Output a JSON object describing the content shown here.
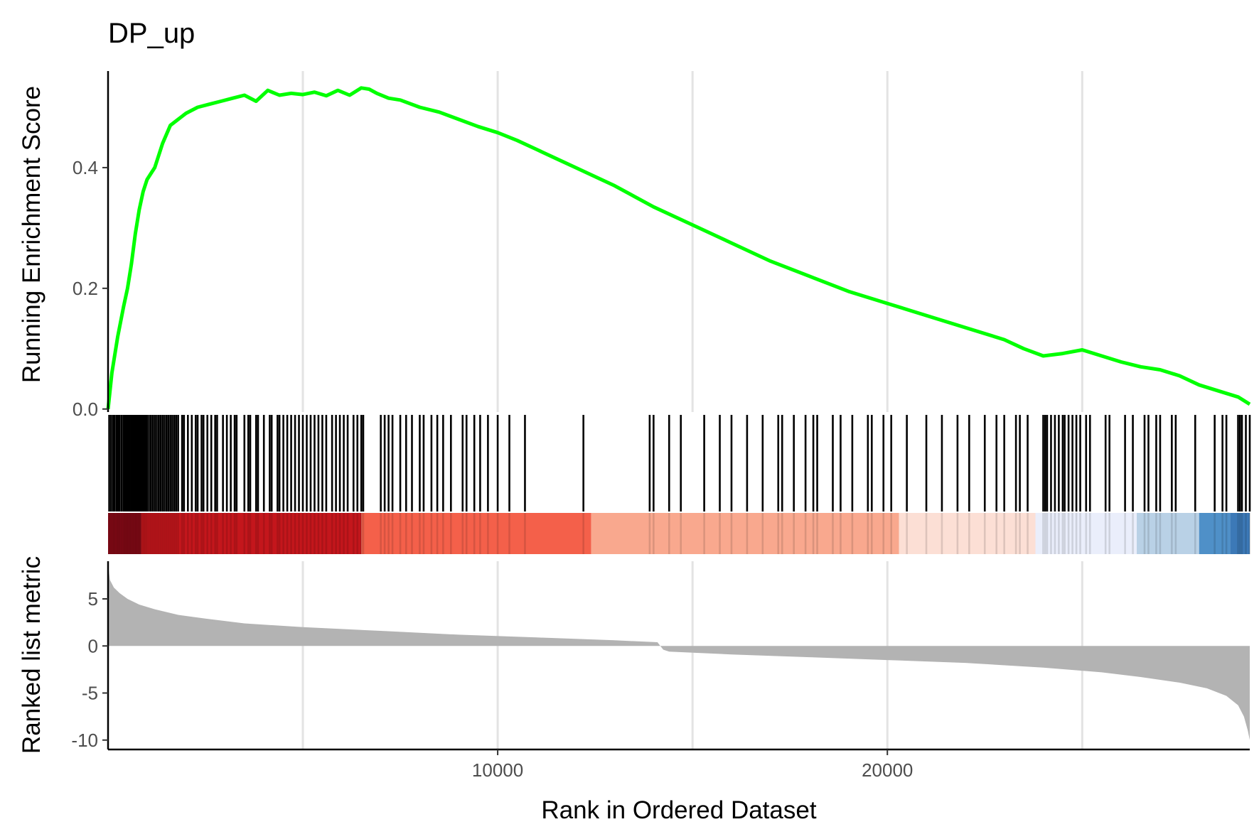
{
  "chart_data": {
    "type": "line",
    "title": "DP_up",
    "xlabel": "Rank in Ordered Dataset",
    "xlim": [
      1,
      29300
    ],
    "x_ticks": [
      10000,
      20000
    ],
    "x_tick_labels": [
      "10000",
      "20000"
    ],
    "x_gridlines": [
      5000,
      10000,
      15000,
      20000,
      25000
    ],
    "grid": "vertical major and minor x gridlines",
    "legend": "none",
    "panels": {
      "running_score": {
        "ylabel": "Running Enrichment Score",
        "ylim": [
          -0.005,
          0.56
        ],
        "y_ticks": [
          0.0,
          0.2,
          0.4
        ],
        "y_tick_labels": [
          "0.0",
          "0.2",
          "0.4"
        ],
        "line_color": "#00ff00",
        "series": [
          {
            "x": [
              1,
              100,
              250,
              400,
              500,
              600,
              700,
              800,
              900,
              1000,
              1100,
              1200,
              1400,
              1600,
              1800,
              2000,
              2300,
              2600,
              2900,
              3200,
              3500,
              3800,
              4100,
              4400,
              4700,
              5000,
              5300,
              5600,
              5900,
              6200,
              6500,
              6700,
              6900,
              7200,
              7500,
              8000,
              8500,
              9000,
              9500,
              10000,
              10500,
              11000,
              11500,
              12000,
              13000,
              14000,
              15000,
              16000,
              17000,
              18000,
              19000,
              20000,
              21000,
              22000,
              23000,
              23500,
              24000,
              24500,
              25000,
              25500,
              26000,
              26500,
              27000,
              27500,
              28000,
              28500,
              29000,
              29300
            ],
            "y": [
              0.0,
              0.06,
              0.12,
              0.17,
              0.2,
              0.24,
              0.29,
              0.33,
              0.36,
              0.38,
              0.39,
              0.4,
              0.44,
              0.47,
              0.48,
              0.49,
              0.5,
              0.505,
              0.51,
              0.515,
              0.52,
              0.51,
              0.528,
              0.52,
              0.523,
              0.521,
              0.525,
              0.519,
              0.528,
              0.52,
              0.532,
              0.53,
              0.523,
              0.515,
              0.512,
              0.5,
              0.492,
              0.48,
              0.468,
              0.458,
              0.445,
              0.43,
              0.415,
              0.4,
              0.37,
              0.335,
              0.305,
              0.275,
              0.245,
              0.22,
              0.195,
              0.175,
              0.155,
              0.135,
              0.115,
              0.1,
              0.088,
              0.092,
              0.098,
              0.088,
              0.078,
              0.07,
              0.065,
              0.055,
              0.04,
              0.03,
              0.02,
              0.008
            ]
          }
        ]
      },
      "hits": {
        "positions": [
          30,
          80,
          130,
          170,
          220,
          260,
          300,
          350,
          400,
          440,
          480,
          520,
          560,
          600,
          640,
          680,
          720,
          760,
          800,
          840,
          880,
          920,
          960,
          1000,
          1050,
          1100,
          1150,
          1200,
          1250,
          1300,
          1350,
          1400,
          1450,
          1500,
          1550,
          1600,
          1650,
          1700,
          1750,
          1800,
          1900,
          1950,
          2050,
          2150,
          2250,
          2300,
          2400,
          2450,
          2550,
          2650,
          2750,
          2800,
          2950,
          3050,
          3150,
          3250,
          3300,
          3500,
          3600,
          3650,
          3800,
          3850,
          4000,
          4150,
          4200,
          4350,
          4400,
          4500,
          4600,
          4700,
          4800,
          4900,
          5000,
          5100,
          5200,
          5300,
          5400,
          5500,
          5600,
          5750,
          5850,
          5950,
          6050,
          6150,
          6300,
          6400,
          6500,
          6550,
          7000,
          7100,
          7200,
          7300,
          7500,
          7650,
          7800,
          8000,
          8100,
          8300,
          8450,
          8600,
          8800,
          9100,
          9200,
          9400,
          9550,
          9750,
          10000,
          10300,
          10700,
          12200,
          13900,
          14000,
          14400,
          14700,
          15300,
          15700,
          16000,
          16400,
          16800,
          17200,
          17300,
          17600,
          17900,
          18100,
          18200,
          18600,
          18800,
          19100,
          19500,
          19600,
          19900,
          20100,
          20500,
          21000,
          21400,
          21800,
          22100,
          22500,
          22800,
          23000,
          23300,
          23400,
          23600,
          24000,
          24050,
          24100,
          24200,
          24300,
          24400,
          24500,
          24550,
          24650,
          24750,
          24850,
          24950,
          25100,
          25200,
          25600,
          25700,
          26100,
          26300,
          26600,
          26700,
          26900,
          27000,
          27300,
          27400,
          27900,
          28400,
          28600,
          28700,
          29000,
          29050,
          29100,
          29200,
          29300,
          29400,
          29500,
          29600,
          29700,
          29800,
          29900
        ]
      },
      "color_band": {
        "segments": [
          {
            "from": 1,
            "to": 850,
            "color": "#860a16"
          },
          {
            "from": 850,
            "to": 6500,
            "color": "#c4161c"
          },
          {
            "from": 6500,
            "to": 12400,
            "color": "#f4604a"
          },
          {
            "from": 12400,
            "to": 20300,
            "color": "#f9a88e"
          },
          {
            "from": 20300,
            "to": 23800,
            "color": "#fcdfd5"
          },
          {
            "from": 23800,
            "to": 26400,
            "color": "#eaeefb"
          },
          {
            "from": 26400,
            "to": 28000,
            "color": "#b9d1e6"
          },
          {
            "from": 28000,
            "to": 28800,
            "color": "#4f90c8"
          },
          {
            "from": 28800,
            "to": 29300,
            "color": "#3c79b7"
          }
        ]
      },
      "ranked_metric": {
        "ylabel": "Ranked list metric",
        "ylim": [
          -11,
          9
        ],
        "y_ticks": [
          5,
          0,
          -5,
          -10
        ],
        "y_tick_labels": [
          "5",
          "0",
          "-5",
          "-10"
        ],
        "fill_color": "#b3b3b3",
        "series": [
          {
            "x": [
              1,
              50,
              150,
              300,
              500,
              800,
              1200,
              1800,
              2500,
              3500,
              5000,
              7000,
              9000,
              11000,
              13000,
              14100,
              14250,
              14400,
              16000,
              18000,
              20000,
              22000,
              24000,
              25500,
              26500,
              27500,
              28200,
              28700,
              29000,
              29150,
              29250,
              29300
            ],
            "y": [
              8.6,
              7.0,
              6.2,
              5.6,
              5.0,
              4.4,
              3.9,
              3.3,
              2.9,
              2.4,
              2.0,
              1.6,
              1.2,
              0.9,
              0.6,
              0.4,
              -0.4,
              -0.6,
              -0.9,
              -1.2,
              -1.5,
              -1.8,
              -2.3,
              -2.8,
              -3.3,
              -3.9,
              -4.5,
              -5.3,
              -6.3,
              -7.5,
              -9.0,
              -10.0
            ]
          }
        ]
      }
    }
  }
}
